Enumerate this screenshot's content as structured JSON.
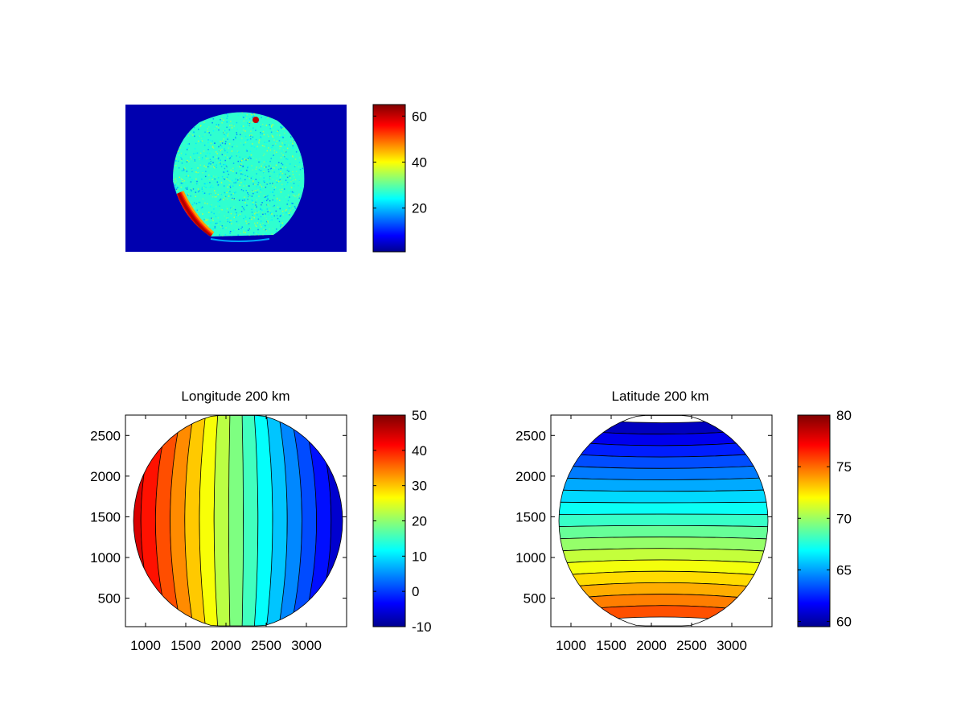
{
  "colormap": "jet",
  "jet_stops": [
    "#00008f",
    "#0000ff",
    "#00ffff",
    "#ffff00",
    "#ff0000",
    "#800000"
  ],
  "chart_data": [
    {
      "id": "image",
      "type": "heatmap",
      "title": "",
      "description_values": {
        "background_level": 3,
        "disk_level_typical": 27,
        "hot_corner_level": 60
      },
      "colorbar": {
        "min": 1,
        "max": 65,
        "ticks": [
          20,
          40,
          60
        ],
        "tick_labels": [
          "20",
          "40",
          "60"
        ]
      },
      "axes_visible": false
    },
    {
      "id": "longitude",
      "type": "heatmap",
      "title": "Longitude 200 km",
      "xlim": [
        750,
        3500
      ],
      "ylim": [
        150,
        2750
      ],
      "xticks": [
        1000,
        1500,
        2000,
        2500,
        3000
      ],
      "xtick_labels": [
        "1000",
        "1500",
        "2000",
        "2500",
        "3000"
      ],
      "yticks": [
        500,
        1000,
        1500,
        2000,
        2500
      ],
      "ytick_labels": [
        "500",
        "1000",
        "1500",
        "2000",
        "2500"
      ],
      "colorbar": {
        "min": -10,
        "max": 50,
        "ticks": [
          -10,
          0,
          10,
          20,
          30,
          40,
          50
        ],
        "tick_labels": [
          "-10",
          "0",
          "10",
          "20",
          "30",
          "40",
          "50"
        ]
      },
      "contour_levels": [
        -8,
        -4,
        0,
        4,
        8,
        12,
        16,
        20,
        24,
        28,
        32,
        36,
        40,
        44
      ],
      "value_range_shown": [
        -8,
        46
      ]
    },
    {
      "id": "latitude",
      "type": "heatmap",
      "title": "Latitude 200 km",
      "xlim": [
        750,
        3500
      ],
      "ylim": [
        150,
        2750
      ],
      "xticks": [
        1000,
        1500,
        2000,
        2500,
        3000
      ],
      "xtick_labels": [
        "1000",
        "1500",
        "2000",
        "2500",
        "3000"
      ],
      "yticks": [
        500,
        1000,
        1500,
        2000,
        2500
      ],
      "ytick_labels": [
        "500",
        "1000",
        "1500",
        "2000",
        "2500"
      ],
      "colorbar": {
        "min": 59.5,
        "max": 80,
        "ticks": [
          60,
          65,
          70,
          75,
          80
        ],
        "tick_labels": [
          "60",
          "65",
          "70",
          "75",
          "80"
        ]
      },
      "contour_levels": [
        60,
        61,
        62,
        63,
        64,
        65,
        66,
        67,
        68,
        69,
        70,
        71,
        72,
        73,
        74,
        75,
        76
      ],
      "value_range_shown": [
        60,
        76
      ]
    }
  ]
}
